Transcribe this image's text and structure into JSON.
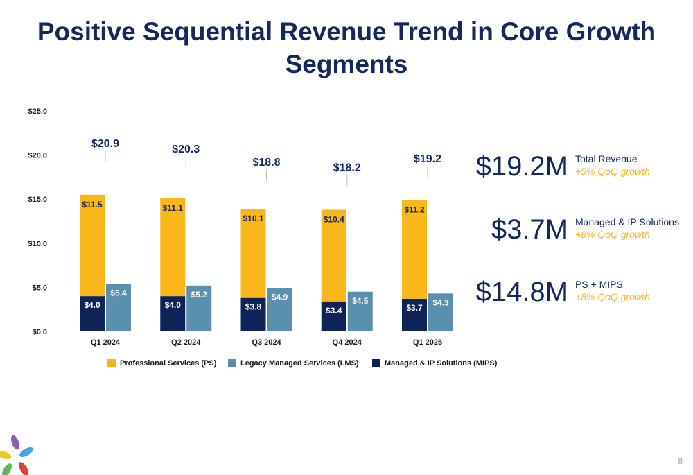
{
  "title": "Positive Sequential Revenue Trend in Core Growth Segments",
  "page_number": "8",
  "colors": {
    "ps": "#f9b71b",
    "lms": "#5b8fae",
    "mips": "#0e2358",
    "text_dark": "#13285e",
    "accent": "#f9b71b"
  },
  "kpis": [
    {
      "value": "$19.2M",
      "label": "Total Revenue",
      "growth": "+5% QoQ growth"
    },
    {
      "value": "$3.7M",
      "label": "Managed & IP Solutions",
      "growth": "+8% QoQ growth"
    },
    {
      "value": "$14.8M",
      "label": "PS + MIPS",
      "growth": "+8% QoQ growth"
    }
  ],
  "chart_data": {
    "type": "bar",
    "categories": [
      "Q1 2024",
      "Q2 2024",
      "Q3 2024",
      "Q4 2024",
      "Q1 2025"
    ],
    "ylim": [
      0,
      25
    ],
    "yticks": [
      "$0.0",
      "$5.0",
      "$10.0",
      "$15.0",
      "$20.0",
      "$25.0"
    ],
    "totals": [
      "$20.9",
      "$20.3",
      "$18.8",
      "$18.2",
      "$19.2"
    ],
    "series": [
      {
        "name": "Professional Services (PS)",
        "key": "ps",
        "values": [
          11.5,
          11.1,
          10.1,
          10.4,
          11.2
        ],
        "labels": [
          "$11.5",
          "$11.1",
          "$10.1",
          "$10.4",
          "$11.2"
        ]
      },
      {
        "name": "Legacy Managed Services (LMS)",
        "key": "lms",
        "values": [
          5.4,
          5.2,
          4.9,
          4.5,
          4.3
        ],
        "labels": [
          "$5.4",
          "$5.2",
          "$4.9",
          "$4.5",
          "$4.3"
        ]
      },
      {
        "name": "Managed & IP Solutions (MIPS)",
        "key": "mips",
        "values": [
          4.0,
          4.0,
          3.8,
          3.4,
          3.7
        ],
        "labels": [
          "$4.0",
          "$4.0",
          "$3.8",
          "$3.4",
          "$3.7"
        ]
      }
    ],
    "legend_position": "bottom",
    "grid": false
  }
}
